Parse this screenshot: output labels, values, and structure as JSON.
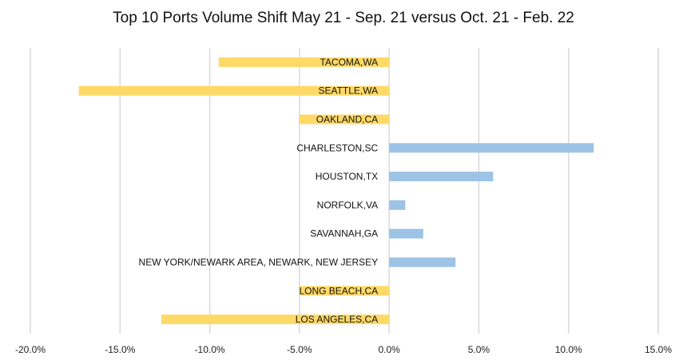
{
  "chart_data": {
    "type": "bar",
    "orientation": "horizontal",
    "title": "Top 10 Ports Volume Shift May 21 - Sep. 21 versus Oct. 21 - Feb. 22",
    "xlabel": "",
    "ylabel": "",
    "xlim": [
      -0.2,
      0.15
    ],
    "x_ticks": [
      -0.2,
      -0.15,
      -0.1,
      -0.05,
      0.0,
      0.05,
      0.1,
      0.15
    ],
    "x_tick_labels": [
      "-20.0%",
      "-15.0%",
      "-10.0%",
      "-5.0%",
      "0.0%",
      "5.0%",
      "10.0%",
      "15.0%"
    ],
    "grid": "vertical",
    "legend": "none",
    "categories": [
      "TACOMA,WA",
      "SEATTLE,WA",
      "OAKLAND,CA",
      "CHARLESTON,SC",
      "HOUSTON,TX",
      "NORFOLK,VA",
      "SAVANNAH,GA",
      "NEW YORK/NEWARK AREA, NEWARK, NEW JERSEY",
      "LONG BEACH,CA",
      "LOS ANGELES,CA"
    ],
    "values": [
      -0.095,
      -0.173,
      -0.05,
      0.114,
      0.058,
      0.009,
      0.019,
      0.037,
      -0.05,
      -0.127
    ],
    "colors": {
      "negative": "#FFD966",
      "positive": "#9DC3E6",
      "grid": "#d9d9d9"
    }
  }
}
